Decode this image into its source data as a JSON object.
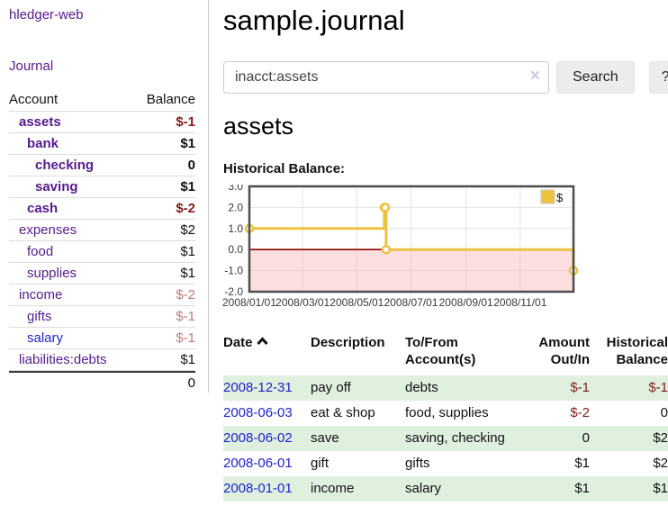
{
  "app": {
    "brand": "hledger-web",
    "nav_journal": "Journal"
  },
  "sidebar": {
    "table_headers": {
      "account": "Account",
      "balance": "Balance"
    },
    "accounts": [
      {
        "name": "assets",
        "indent": 1,
        "bold": true,
        "link_color": "purple",
        "balance": "$-1",
        "balance_style": "neg"
      },
      {
        "name": "bank",
        "indent": 2,
        "bold": true,
        "link_color": "purple",
        "balance": "$1",
        "balance_style": ""
      },
      {
        "name": "checking",
        "indent": 3,
        "bold": true,
        "link_color": "purple",
        "balance": "0",
        "balance_style": ""
      },
      {
        "name": "saving",
        "indent": 3,
        "bold": true,
        "link_color": "purple",
        "balance": "$1",
        "balance_style": ""
      },
      {
        "name": "cash",
        "indent": 2,
        "bold": true,
        "link_color": "purple",
        "balance": "$-2",
        "balance_style": "neg"
      },
      {
        "name": "expenses",
        "indent": 1,
        "bold": false,
        "link_color": "purple",
        "balance": "$2",
        "balance_style": ""
      },
      {
        "name": "food",
        "indent": 2,
        "bold": false,
        "link_color": "purple",
        "balance": "$1",
        "balance_style": ""
      },
      {
        "name": "supplies",
        "indent": 2,
        "bold": false,
        "link_color": "purple",
        "balance": "$1",
        "balance_style": ""
      },
      {
        "name": "income",
        "indent": 1,
        "bold": false,
        "link_color": "purple",
        "balance": "$-2",
        "balance_style": "dim"
      },
      {
        "name": "gifts",
        "indent": 2,
        "bold": false,
        "link_color": "purple",
        "balance": "$-1",
        "balance_style": "dim"
      },
      {
        "name": "salary",
        "indent": 2,
        "bold": false,
        "link_color": "blue",
        "balance": "$-1",
        "balance_style": "dim"
      },
      {
        "name": "liabilities:debts",
        "indent": 1,
        "bold": false,
        "link_color": "purple",
        "balance": "$1",
        "balance_style": ""
      }
    ],
    "total": "0"
  },
  "header": {
    "title": "sample.journal"
  },
  "search": {
    "query": "inacct:assets",
    "clear_icon": "×",
    "search_label": "Search",
    "help_label": "?"
  },
  "account_page": {
    "heading": "assets",
    "chart_label": "Historical Balance:"
  },
  "chart_data": {
    "type": "line",
    "step": true,
    "title": "Historical Balance",
    "series": [
      {
        "name": "$",
        "color": "#edc240",
        "points": [
          [
            "2008-01-01",
            1
          ],
          [
            "2008-06-01",
            2
          ],
          [
            "2008-06-02",
            2
          ],
          [
            "2008-06-03",
            0
          ],
          [
            "2008-12-31",
            -1
          ]
        ]
      }
    ],
    "xlim": [
      "2008-01-01",
      "2008-12-31"
    ],
    "ylim": [
      -2,
      3
    ],
    "x_tick_labels": [
      "2008/01/01",
      "2008/03/01",
      "2008/05/01",
      "2008/07/01",
      "2008/09/01",
      "2008/11/01"
    ],
    "y_tick_labels": [
      "3.0",
      "2.0",
      "1.0",
      "0.0",
      "-1.0",
      "-2.0"
    ],
    "y_ticks": [
      3,
      2,
      1,
      0,
      -1,
      -2
    ],
    "grid": true,
    "legend": {
      "label": "$",
      "position": "top-right"
    },
    "negative_region_color": "rgba(250,170,170,0.38)",
    "zero_line_color": "#8b0000",
    "border_color": "#4d4d4d"
  },
  "table": {
    "headers": [
      "Date",
      "Description",
      "To/From Account(s)",
      "Amount Out/In",
      "Historical Balance"
    ],
    "sort_icon": "chevron-up",
    "rows": [
      {
        "date": "2008-12-31",
        "description": "pay off",
        "accounts": "debts",
        "amount": "$-1",
        "amount_negative": true,
        "balance": "$-1",
        "balance_negative": true
      },
      {
        "date": "2008-06-03",
        "description": "eat & shop",
        "accounts": "food, supplies",
        "amount": "$-2",
        "amount_negative": true,
        "balance": "0",
        "balance_negative": false
      },
      {
        "date": "2008-06-02",
        "description": "save",
        "accounts": "saving, checking",
        "amount": "0",
        "amount_negative": false,
        "balance": "$2",
        "balance_negative": false
      },
      {
        "date": "2008-06-01",
        "description": "gift",
        "accounts": "gifts",
        "amount": "$1",
        "amount_negative": false,
        "balance": "$2",
        "balance_negative": false
      },
      {
        "date": "2008-01-01",
        "description": "income",
        "accounts": "salary",
        "amount": "$1",
        "amount_negative": false,
        "balance": "$1",
        "balance_negative": false
      }
    ]
  }
}
